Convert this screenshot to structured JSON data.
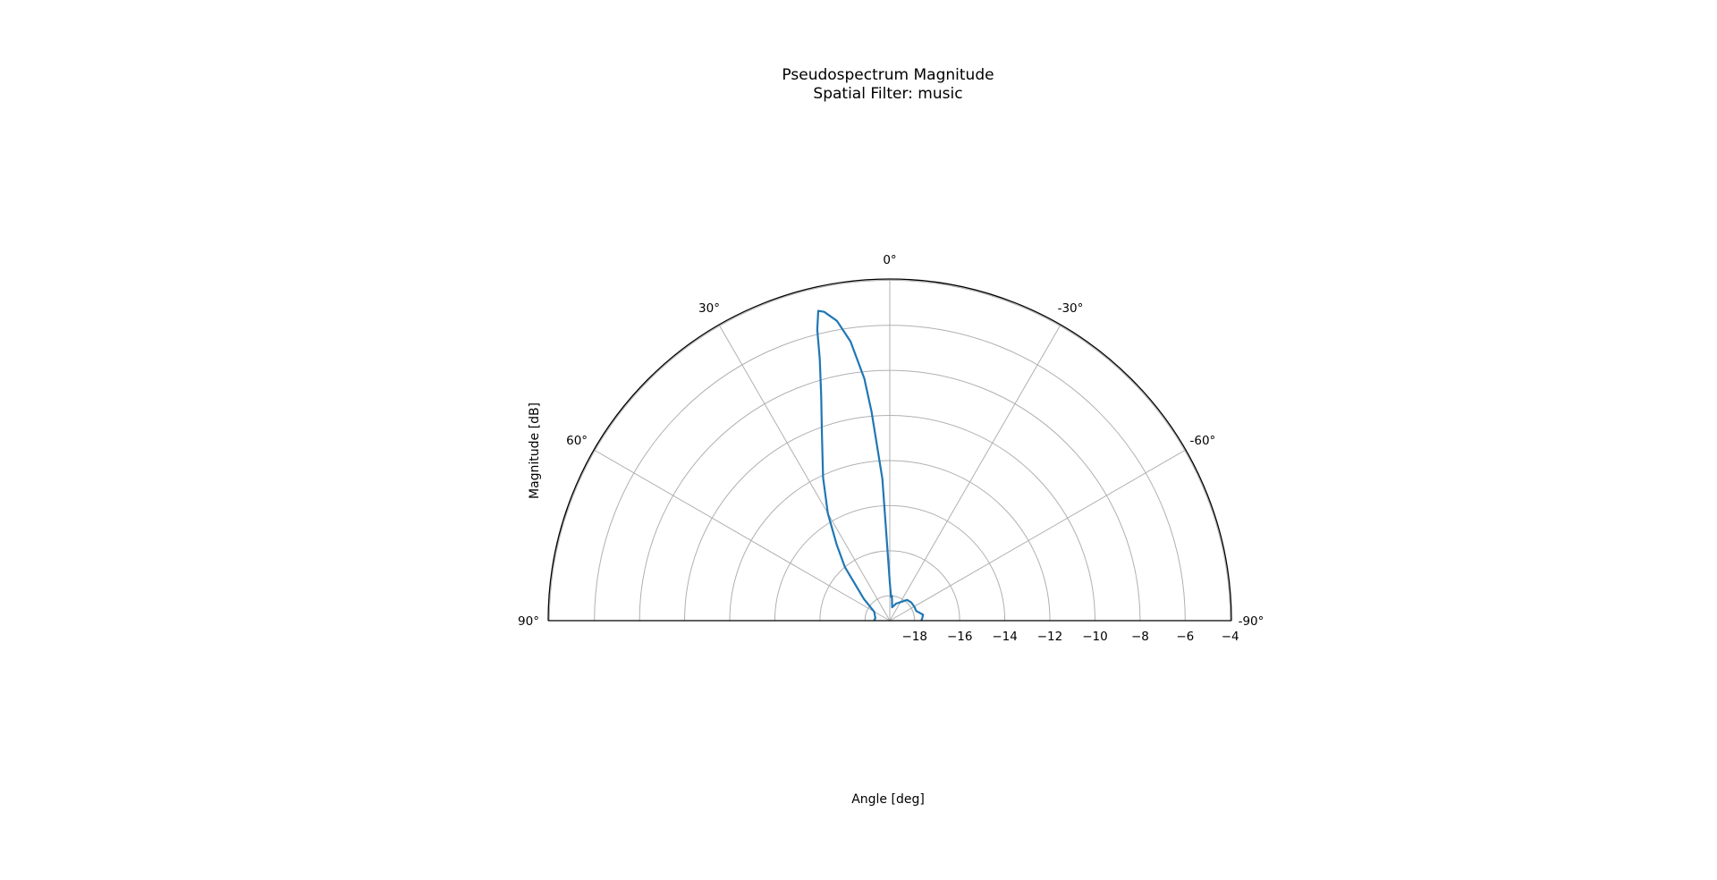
{
  "chart_data": {
    "type": "line",
    "projection": "polar",
    "title": "Pseudospectrum Magnitude",
    "subtitle": "Spatial Filter: music",
    "xlabel": "Angle [deg]",
    "ylabel": "Magnitude [dB]",
    "theta_range_deg": [
      -90,
      90
    ],
    "theta_zero": "top",
    "theta_ticks": [
      90,
      60,
      30,
      0,
      -30,
      -60,
      -90
    ],
    "theta_tick_labels": [
      "90°",
      "60°",
      "30°",
      "0°",
      "-30°",
      "-60°",
      "-90°"
    ],
    "r_range": [
      -19.1,
      -3.95
    ],
    "r_ticks": [
      -18,
      -16,
      -14,
      -12,
      -10,
      -8,
      -6,
      -4
    ],
    "r_tick_labels": [
      "−18",
      "−16",
      "−14",
      "−12",
      "−10",
      "−8",
      "−6",
      "−4"
    ],
    "grid": true,
    "series": [
      {
        "name": "",
        "color": "#1f77b4",
        "theta_deg": [
          90,
          80,
          60,
          50,
          40,
          35,
          30,
          25,
          20,
          17,
          15,
          14,
          13,
          12,
          10,
          8,
          6,
          5,
          3,
          0,
          -3,
          -5,
          -10,
          -20,
          -30,
          -40,
          -50,
          -60,
          -70,
          -80,
          -85,
          -90
        ],
        "r_db": [
          -18.4,
          -18.45,
          -18.3,
          -17.6,
          -16.0,
          -15.0,
          -13.6,
          -12.1,
          -10.3,
          -8.7,
          -7.1,
          -5.8,
          -5.0,
          -5.1,
          -5.6,
          -6.6,
          -8.3,
          -9.8,
          -12.8,
          -17.4,
          -18.05,
          -18.0,
          -18.5,
          -18.3,
          -18.15,
          -17.9,
          -17.85,
          -17.85,
          -17.85,
          -17.6,
          -17.65,
          -17.7
        ]
      }
    ]
  }
}
